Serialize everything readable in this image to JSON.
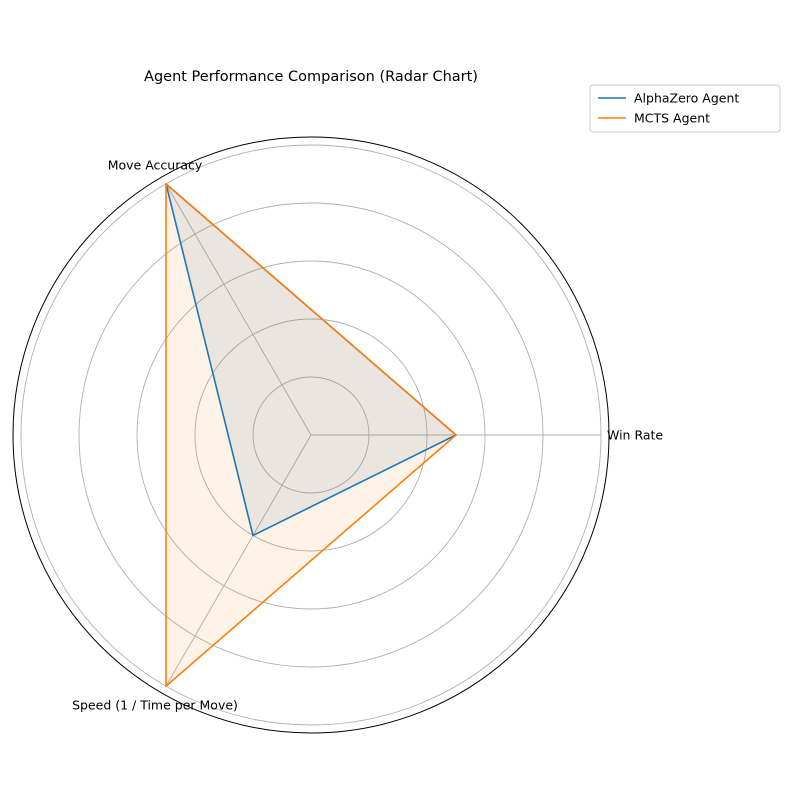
{
  "chart_data": {
    "type": "radar",
    "title": "Agent Performance Comparison (Radar Chart)",
    "categories": [
      "Win Rate",
      "Move Accuracy",
      "Speed (1 / Time per Move)"
    ],
    "series": [
      {
        "name": "AlphaZero Agent",
        "values": [
          0.5,
          1.0,
          0.4
        ],
        "color": "#1f77b4"
      },
      {
        "name": "MCTS Agent",
        "values": [
          0.5,
          1.0,
          1.0
        ],
        "color": "#ff7f0e"
      }
    ],
    "rlim": [
      0,
      1.0
    ],
    "rgrid": [
      0.2,
      0.4,
      0.6,
      0.8,
      1.0
    ],
    "rtick_labels_visible": false,
    "grid": true,
    "legend_position": "top-right"
  }
}
